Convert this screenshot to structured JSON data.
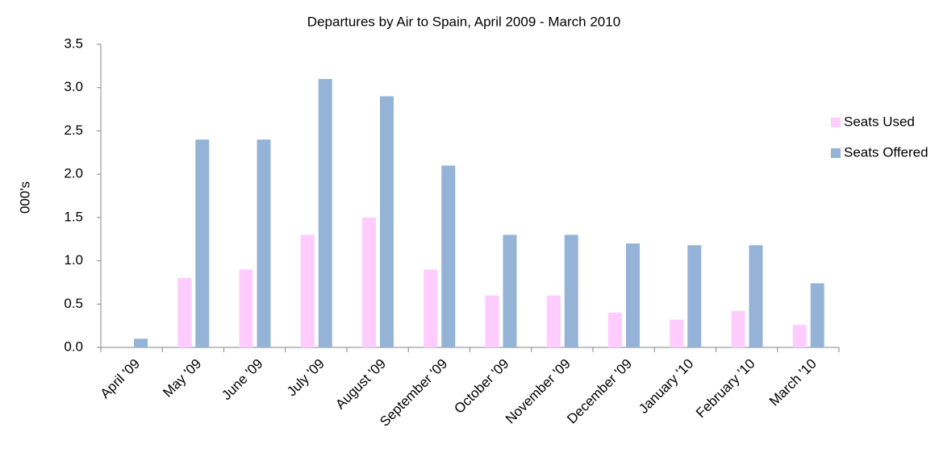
{
  "chart_data": {
    "type": "bar",
    "title": "Departures by Air to Spain, April 2009 - March 2010",
    "y_label": "000's",
    "categories": [
      "April '09",
      "May '09",
      "June '09",
      "July '09",
      "August '09",
      "September '09",
      "October '09",
      "November '09",
      "December '09",
      "January '10",
      "February '10",
      "March '10"
    ],
    "series": [
      {
        "name": "Seats Used",
        "color": "#ffccff",
        "values": [
          0,
          0.8,
          0.9,
          1.3,
          1.5,
          0.9,
          0.6,
          0.6,
          0.4,
          0.32,
          0.42,
          0.26
        ]
      },
      {
        "name": "Seats Offered",
        "color": "#95b3d7",
        "values": [
          0.1,
          2.4,
          2.4,
          3.1,
          2.9,
          2.1,
          1.3,
          1.3,
          1.2,
          1.18,
          1.18,
          0.74
        ]
      }
    ],
    "ylim": [
      0,
      3.5
    ],
    "yticks": [
      {
        "value": 0,
        "label": "0.0"
      },
      0.5,
      {
        "value": 1,
        "label": "1.0"
      },
      1.5,
      {
        "value": 2,
        "label": "2.0"
      },
      2.5,
      {
        "value": 3,
        "label": "3.0"
      },
      3.5
    ],
    "grid": false,
    "legend": "right"
  }
}
